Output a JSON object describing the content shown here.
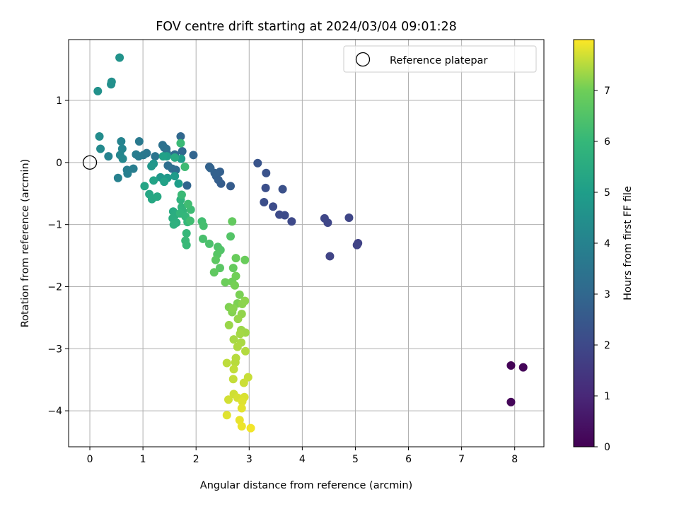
{
  "chart_data": {
    "type": "scatter",
    "title": "FOV centre drift starting at 2024/03/04 09:01:28",
    "xlabel": "Angular distance from reference (arcmin)",
    "ylabel": "Rotation from reference (arcmin)",
    "xlim": [
      -0.4,
      8.55
    ],
    "ylim": [
      -4.58,
      1.98
    ],
    "xticks": [
      0,
      1,
      2,
      3,
      4,
      5,
      6,
      7,
      8
    ],
    "yticks": [
      -4,
      -3,
      -2,
      -1,
      0,
      1
    ],
    "grid": true,
    "legend": {
      "position": "top-right",
      "entries": [
        "Reference platepar"
      ]
    },
    "colorbar": {
      "label": "Hours from first FF file",
      "min": 0,
      "max": 8.0,
      "ticks": [
        0,
        1,
        2,
        3,
        4,
        5,
        6,
        7
      ],
      "colormap": "viridis"
    },
    "reference": {
      "name": "Reference platepar",
      "x": 0,
      "y": 0
    },
    "points": [
      [
        7.93,
        -3.27,
        0.05
      ],
      [
        8.16,
        -3.3,
        0.1
      ],
      [
        7.93,
        -3.86,
        0.15
      ],
      [
        5.05,
        -1.3,
        1.8
      ],
      [
        5.03,
        -1.33,
        1.82
      ],
      [
        4.52,
        -1.51,
        1.85
      ],
      [
        4.88,
        -0.89,
        1.9
      ],
      [
        4.48,
        -0.97,
        1.92
      ],
      [
        4.42,
        -0.9,
        1.95
      ],
      [
        3.8,
        -0.95,
        2.0
      ],
      [
        3.67,
        -0.85,
        2.05
      ],
      [
        3.57,
        -0.84,
        2.08
      ],
      [
        3.45,
        -0.71,
        2.1
      ],
      [
        3.28,
        -0.64,
        2.15
      ],
      [
        3.31,
        -0.41,
        2.2
      ],
      [
        3.63,
        -0.43,
        2.25
      ],
      [
        3.32,
        -0.17,
        2.3
      ],
      [
        3.16,
        -0.01,
        2.35
      ],
      [
        2.65,
        -0.38,
        2.6
      ],
      [
        2.47,
        -0.34,
        2.65
      ],
      [
        2.42,
        -0.28,
        2.7
      ],
      [
        2.38,
        -0.22,
        2.72
      ],
      [
        2.45,
        -0.15,
        2.75
      ],
      [
        2.35,
        -0.17,
        2.78
      ],
      [
        2.25,
        -0.07,
        2.8
      ],
      [
        2.27,
        -0.09,
        2.85
      ],
      [
        1.95,
        0.12,
        2.9
      ],
      [
        1.83,
        -0.37,
        2.95
      ],
      [
        1.71,
        0.42,
        3.0
      ],
      [
        1.74,
        0.18,
        3.05
      ],
      [
        1.6,
        0.13,
        3.1
      ],
      [
        1.62,
        -0.12,
        3.15
      ],
      [
        1.55,
        -0.1,
        3.2
      ],
      [
        1.47,
        -0.05,
        3.25
      ],
      [
        1.44,
        0.22,
        3.3
      ],
      [
        1.37,
        0.28,
        3.35
      ],
      [
        1.4,
        0.24,
        3.4
      ],
      [
        1.45,
        0.15,
        3.45
      ],
      [
        1.23,
        0.1,
        3.5
      ],
      [
        1.07,
        0.15,
        3.55
      ],
      [
        1.01,
        0.12,
        3.6
      ],
      [
        0.93,
        0.34,
        3.65
      ],
      [
        0.92,
        0.1,
        3.7
      ],
      [
        0.87,
        0.13,
        3.75
      ],
      [
        0.82,
        -0.1,
        3.8
      ],
      [
        0.7,
        -0.12,
        3.85
      ],
      [
        0.71,
        -0.18,
        3.9
      ],
      [
        0.53,
        -0.25,
        3.95
      ],
      [
        0.35,
        0.1,
        4.0
      ],
      [
        0.59,
        0.34,
        4.05
      ],
      [
        0.61,
        0.22,
        4.1
      ],
      [
        0.57,
        0.12,
        4.15
      ],
      [
        0.62,
        0.06,
        4.2
      ],
      [
        0.2,
        0.22,
        4.3
      ],
      [
        0.18,
        0.42,
        4.35
      ],
      [
        0.4,
        1.26,
        4.45
      ],
      [
        0.41,
        1.3,
        4.5
      ],
      [
        0.15,
        1.15,
        4.55
      ],
      [
        0.56,
        1.69,
        4.6
      ],
      [
        1.2,
        -0.02,
        4.7
      ],
      [
        1.16,
        -0.06,
        4.75
      ],
      [
        1.33,
        -0.24,
        4.8
      ],
      [
        1.46,
        -0.25,
        4.85
      ],
      [
        1.6,
        -0.22,
        4.9
      ],
      [
        1.72,
        0.06,
        4.95
      ],
      [
        1.67,
        -0.34,
        5.0
      ],
      [
        1.45,
        0.1,
        5.05
      ],
      [
        1.38,
        0.1,
        5.1
      ],
      [
        1.4,
        -0.31,
        5.15
      ],
      [
        1.2,
        -0.29,
        5.2
      ],
      [
        1.03,
        -0.38,
        5.25
      ],
      [
        1.12,
        -0.51,
        5.3
      ],
      [
        1.17,
        -0.59,
        5.35
      ],
      [
        1.27,
        -0.55,
        5.4
      ],
      [
        1.6,
        0.08,
        5.45
      ],
      [
        1.57,
        -0.79,
        5.5
      ],
      [
        1.6,
        -0.85,
        5.55
      ],
      [
        1.56,
        -0.9,
        5.6
      ],
      [
        1.63,
        -0.97,
        5.65
      ],
      [
        1.58,
        -1.0,
        5.7
      ],
      [
        1.71,
        -0.6,
        5.75
      ],
      [
        1.73,
        -0.72,
        5.8
      ],
      [
        1.75,
        -0.78,
        5.85
      ],
      [
        1.7,
        -0.82,
        5.9
      ],
      [
        1.8,
        -0.87,
        5.95
      ],
      [
        1.84,
        -0.96,
        6.0
      ],
      [
        1.82,
        -1.14,
        6.0
      ],
      [
        1.8,
        -1.26,
        6.05
      ],
      [
        1.82,
        -1.33,
        6.05
      ],
      [
        1.71,
        0.31,
        6.1
      ],
      [
        1.73,
        -0.52,
        6.1
      ],
      [
        1.79,
        -0.07,
        6.15
      ],
      [
        1.9,
        -0.76,
        6.15
      ],
      [
        1.85,
        -0.67,
        6.2
      ],
      [
        1.89,
        -0.94,
        6.2
      ],
      [
        2.11,
        -0.95,
        6.25
      ],
      [
        2.14,
        -1.02,
        6.3
      ],
      [
        2.13,
        -1.23,
        6.35
      ],
      [
        2.25,
        -1.31,
        6.4
      ],
      [
        2.41,
        -1.36,
        6.45
      ],
      [
        2.46,
        -1.41,
        6.5
      ],
      [
        2.65,
        -1.19,
        6.55
      ],
      [
        2.4,
        -1.48,
        6.6
      ],
      [
        2.45,
        -1.7,
        6.65
      ],
      [
        2.37,
        -1.57,
        6.7
      ],
      [
        2.34,
        -1.77,
        6.75
      ],
      [
        2.68,
        -0.95,
        6.8
      ],
      [
        2.7,
        -1.7,
        6.85
      ],
      [
        2.75,
        -1.54,
        6.9
      ],
      [
        2.92,
        -1.57,
        6.92
      ],
      [
        2.55,
        -1.93,
        6.95
      ],
      [
        2.68,
        -1.92,
        7.0
      ],
      [
        2.75,
        -1.83,
        7.02
      ],
      [
        2.73,
        -1.98,
        7.05
      ],
      [
        2.82,
        -2.13,
        7.08
      ],
      [
        2.78,
        -2.27,
        7.1
      ],
      [
        2.62,
        -2.33,
        7.12
      ],
      [
        2.68,
        -2.41,
        7.15
      ],
      [
        2.7,
        -2.35,
        7.18
      ],
      [
        2.87,
        -2.28,
        7.2
      ],
      [
        2.92,
        -2.23,
        7.22
      ],
      [
        2.86,
        -2.44,
        7.25
      ],
      [
        2.79,
        -2.52,
        7.28
      ],
      [
        2.62,
        -2.62,
        7.3
      ],
      [
        2.85,
        -2.7,
        7.32
      ],
      [
        2.93,
        -2.74,
        7.35
      ],
      [
        2.83,
        -2.76,
        7.38
      ],
      [
        2.71,
        -2.85,
        7.4
      ],
      [
        2.85,
        -2.9,
        7.42
      ],
      [
        2.78,
        -2.97,
        7.45
      ],
      [
        2.93,
        -3.04,
        7.48
      ],
      [
        2.75,
        -3.15,
        7.5
      ],
      [
        2.74,
        -3.22,
        7.52
      ],
      [
        2.58,
        -3.23,
        7.55
      ],
      [
        2.71,
        -3.33,
        7.58
      ],
      [
        2.7,
        -3.49,
        7.6
      ],
      [
        2.98,
        -3.46,
        7.62
      ],
      [
        2.9,
        -3.55,
        7.65
      ],
      [
        2.71,
        -3.73,
        7.68
      ],
      [
        2.61,
        -3.82,
        7.7
      ],
      [
        2.78,
        -3.79,
        7.72
      ],
      [
        2.91,
        -3.78,
        7.75
      ],
      [
        2.87,
        -3.85,
        7.78
      ],
      [
        2.58,
        -4.07,
        7.8
      ],
      [
        2.86,
        -3.96,
        7.82
      ],
      [
        2.82,
        -4.15,
        7.85
      ],
      [
        2.86,
        -4.25,
        7.88
      ],
      [
        3.03,
        -4.28,
        7.92
      ]
    ]
  }
}
